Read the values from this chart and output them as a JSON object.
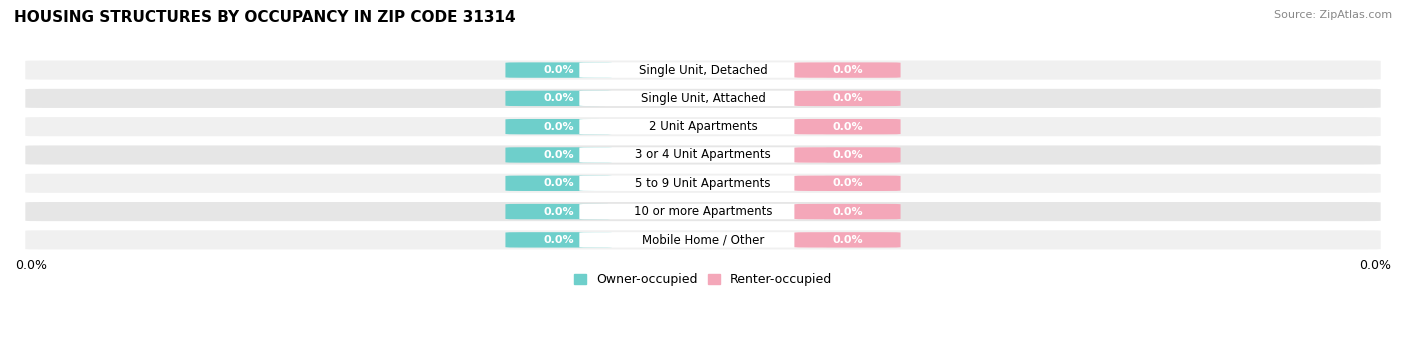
{
  "title": "HOUSING STRUCTURES BY OCCUPANCY IN ZIP CODE 31314",
  "source": "Source: ZipAtlas.com",
  "categories": [
    "Single Unit, Detached",
    "Single Unit, Attached",
    "2 Unit Apartments",
    "3 or 4 Unit Apartments",
    "5 to 9 Unit Apartments",
    "10 or more Apartments",
    "Mobile Home / Other"
  ],
  "owner_values": [
    0.0,
    0.0,
    0.0,
    0.0,
    0.0,
    0.0,
    0.0
  ],
  "renter_values": [
    0.0,
    0.0,
    0.0,
    0.0,
    0.0,
    0.0,
    0.0
  ],
  "owner_color": "#6ecfcb",
  "renter_color": "#f4a7b9",
  "row_bg_light": "#f0f0f0",
  "row_bg_dark": "#e6e6e6",
  "row_border_color": "#ffffff",
  "title_fontsize": 11,
  "source_fontsize": 8,
  "label_fontsize": 8.5,
  "value_fontsize": 8,
  "figsize": [
    14.06,
    3.41
  ],
  "dpi": 100,
  "xlim_left": "0.0%",
  "xlim_right": "0.0%"
}
